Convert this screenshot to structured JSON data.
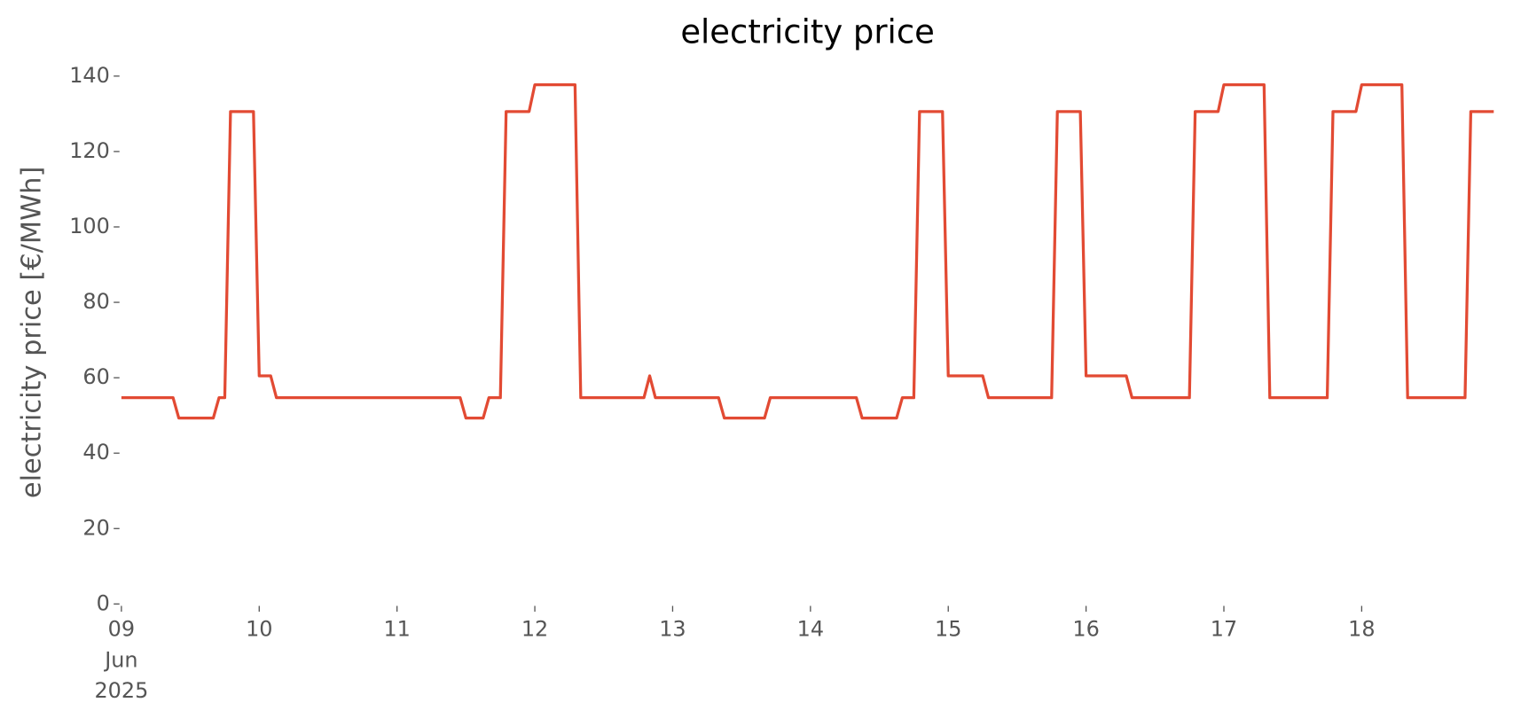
{
  "chart_data": {
    "type": "line",
    "title": "electricity price",
    "ylabel": "electricity price [€/MWh]",
    "color": "#e24a33",
    "x": [
      "2025-06-09T00:00",
      "2025-06-09T09:00",
      "2025-06-09T10:00",
      "2025-06-09T16:00",
      "2025-06-09T17:00",
      "2025-06-09T18:00",
      "2025-06-09T19:00",
      "2025-06-09T23:00",
      "2025-06-10T00:00",
      "2025-06-10T02:00",
      "2025-06-10T03:00",
      "2025-06-11T11:00",
      "2025-06-11T12:00",
      "2025-06-11T15:00",
      "2025-06-11T16:00",
      "2025-06-11T18:00",
      "2025-06-11T19:00",
      "2025-06-11T23:00",
      "2025-06-12T00:00",
      "2025-06-12T07:00",
      "2025-06-12T08:00",
      "2025-06-12T19:00",
      "2025-06-12T20:00",
      "2025-06-12T21:00",
      "2025-06-13T08:00",
      "2025-06-13T09:00",
      "2025-06-13T16:00",
      "2025-06-13T17:00",
      "2025-06-14T08:00",
      "2025-06-14T09:00",
      "2025-06-14T15:00",
      "2025-06-14T16:00",
      "2025-06-14T18:00",
      "2025-06-14T19:00",
      "2025-06-14T23:00",
      "2025-06-15T00:00",
      "2025-06-15T06:00",
      "2025-06-15T07:00",
      "2025-06-15T18:00",
      "2025-06-15T19:00",
      "2025-06-15T23:00",
      "2025-06-16T00:00",
      "2025-06-16T07:00",
      "2025-06-16T08:00",
      "2025-06-16T18:00",
      "2025-06-16T19:00",
      "2025-06-16T23:00",
      "2025-06-17T00:00",
      "2025-06-17T07:00",
      "2025-06-17T08:00",
      "2025-06-17T18:00",
      "2025-06-17T19:00",
      "2025-06-17T23:00",
      "2025-06-18T00:00",
      "2025-06-18T07:00",
      "2025-06-18T08:00",
      "2025-06-18T18:00",
      "2025-06-18T19:00",
      "2025-06-18T23:00"
    ],
    "values": [
      54.7,
      54.7,
      49.3,
      49.3,
      54.7,
      54.7,
      130.6,
      130.6,
      60.5,
      60.5,
      54.7,
      54.7,
      49.3,
      49.3,
      54.7,
      54.7,
      130.6,
      130.6,
      137.7,
      137.7,
      54.7,
      54.7,
      60.5,
      54.7,
      54.7,
      49.3,
      49.3,
      54.7,
      54.7,
      49.3,
      49.3,
      54.7,
      54.7,
      130.6,
      130.6,
      60.5,
      60.5,
      54.7,
      54.7,
      130.6,
      130.6,
      60.5,
      60.5,
      54.7,
      54.7,
      130.6,
      130.6,
      137.7,
      137.7,
      54.7,
      54.7,
      130.6,
      130.6,
      137.7,
      137.7,
      54.7,
      54.7,
      130.6,
      130.6
    ],
    "xlim": [
      "2025-06-09T00:00",
      "2025-06-18T23:00"
    ],
    "xticks": [
      {
        "value": "2025-06-09T00:00",
        "label": "09\nJun\n2025"
      },
      {
        "value": "2025-06-10T00:00",
        "label": "10"
      },
      {
        "value": "2025-06-11T00:00",
        "label": "11"
      },
      {
        "value": "2025-06-12T00:00",
        "label": "12"
      },
      {
        "value": "2025-06-13T00:00",
        "label": "13"
      },
      {
        "value": "2025-06-14T00:00",
        "label": "14"
      },
      {
        "value": "2025-06-15T00:00",
        "label": "15"
      },
      {
        "value": "2025-06-16T00:00",
        "label": "16"
      },
      {
        "value": "2025-06-17T00:00",
        "label": "17"
      },
      {
        "value": "2025-06-18T00:00",
        "label": "18"
      }
    ],
    "ylim": [
      0,
      140
    ],
    "yticks": [
      0,
      20,
      40,
      60,
      80,
      100,
      120,
      140
    ],
    "grid": false
  }
}
